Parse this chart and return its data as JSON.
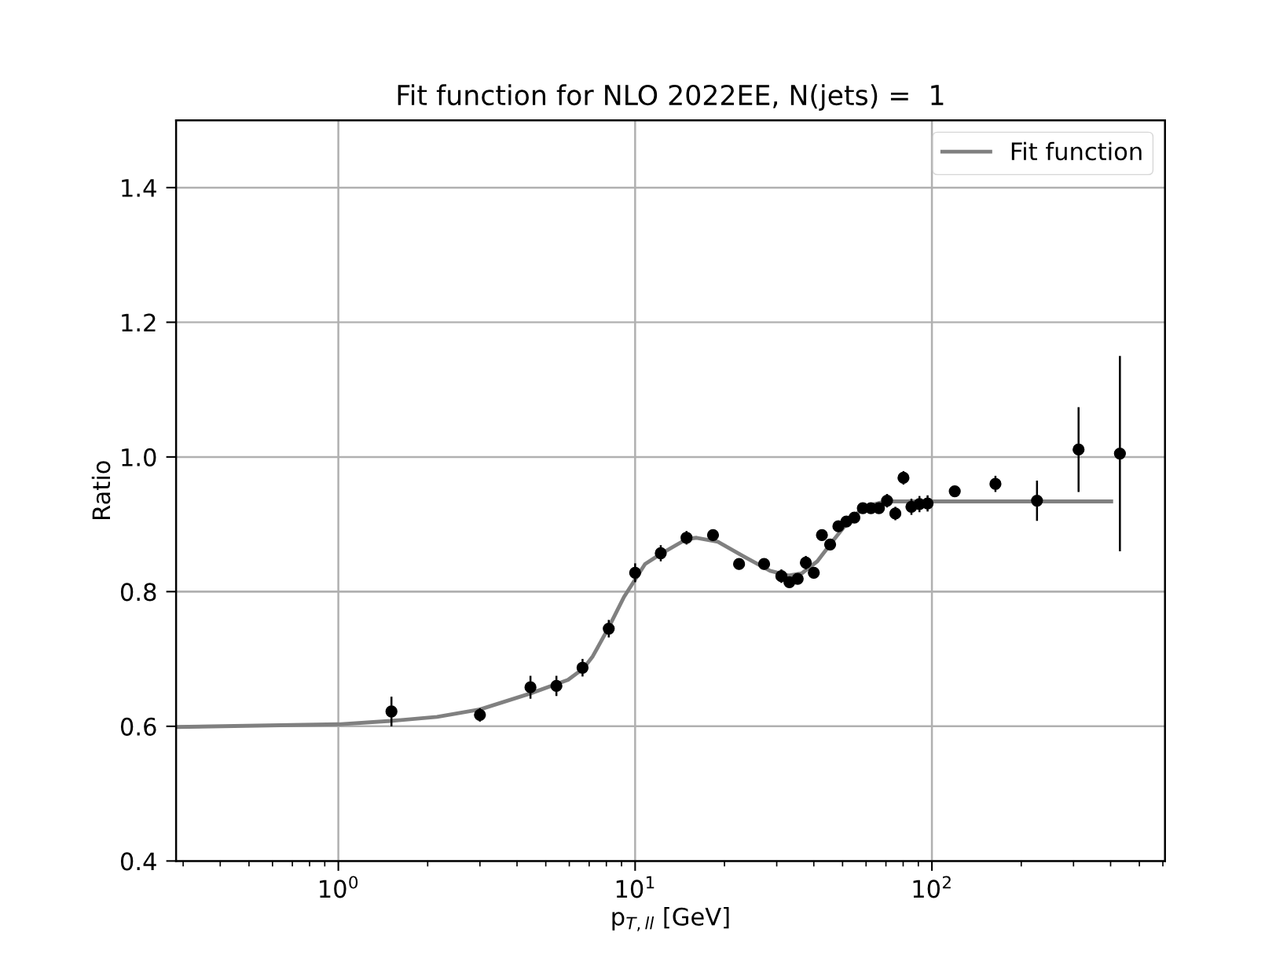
{
  "chart_data": {
    "type": "scatter",
    "title": "Fit function for NLO 2022EE, N(jets) =  1",
    "xlabel": "p$_{T,ll}$ [GeV]",
    "ylabel": "Ratio",
    "log": "x",
    "xlim": [
      0.284,
      610
    ],
    "ylim": [
      0.4,
      1.5
    ],
    "xticks": [
      {
        "value": 1,
        "label": "10$^{0}$"
      },
      {
        "value": 10,
        "label": "10$^{1}$"
      },
      {
        "value": 100,
        "label": "10$^{2}$"
      }
    ],
    "yticks": [
      {
        "value": 0.4,
        "label": "0.4"
      },
      {
        "value": 0.6,
        "label": "0.6"
      },
      {
        "value": 0.8,
        "label": "0.8"
      },
      {
        "value": 1.0,
        "label": "1.0"
      },
      {
        "value": 1.2,
        "label": "1.2"
      },
      {
        "value": 1.4,
        "label": "1.4"
      }
    ],
    "grid": true,
    "legend": "top right",
    "series": [
      {
        "type": "line",
        "name": "Fit function",
        "color": "#808080",
        "line_style": "solid",
        "marker": "none",
        "x": [
          0.284,
          1.0,
          1.5,
          2.15,
          3.0,
          4.45,
          5.94,
          6.7,
          7.2,
          8.13,
          9.17,
          10,
          10.8,
          12.2,
          14.9,
          16.1,
          19.0,
          23.3,
          28.5,
          32.9,
          36.4,
          41.1,
          46.5,
          52.5,
          59.3,
          67,
          74,
          100,
          402
        ],
        "values": [
          0.599,
          0.603,
          0.608,
          0.614,
          0.625,
          0.649,
          0.669,
          0.686,
          0.704,
          0.746,
          0.792,
          0.818,
          0.841,
          0.856,
          0.878,
          0.88,
          0.874,
          0.852,
          0.831,
          0.824,
          0.827,
          0.845,
          0.876,
          0.905,
          0.926,
          0.932,
          0.934,
          0.934,
          0.934
        ]
      },
      {
        "color": "#000000",
        "marker": "circle",
        "x": [
          1.51,
          3.0,
          4.44,
          5.43,
          6.65,
          8.15,
          10.0,
          12.2,
          14.9,
          18.3,
          22.4,
          27.2,
          31.1,
          33.1,
          35.3,
          37.6,
          40.0,
          42.6,
          45.4,
          48.4,
          51.5,
          54.8,
          58.5,
          62.3,
          66.3,
          70.6,
          75.3,
          80.2,
          85.3,
          90.8,
          96.7,
          119.4,
          163.7,
          226,
          312,
          430
        ],
        "values": [
          0.622,
          0.617,
          0.658,
          0.66,
          0.687,
          0.745,
          0.828,
          0.857,
          0.88,
          0.884,
          0.841,
          0.841,
          0.823,
          0.814,
          0.819,
          0.843,
          0.828,
          0.884,
          0.87,
          0.897,
          0.904,
          0.91,
          0.924,
          0.924,
          0.924,
          0.935,
          0.916,
          0.969,
          0.926,
          0.93,
          0.931,
          0.949,
          0.96,
          0.935,
          1.011,
          1.005
        ],
        "errors": [
          0.022,
          0.01,
          0.017,
          0.015,
          0.013,
          0.013,
          0.014,
          0.012,
          0.01,
          0.008,
          0.005,
          0.005,
          0.01,
          0.008,
          0.008,
          0.01,
          0.008,
          0.008,
          0.008,
          0.008,
          0.008,
          0.008,
          0.008,
          0.008,
          0.008,
          0.01,
          0.01,
          0.01,
          0.012,
          0.012,
          0.012,
          0.006,
          0.012,
          0.03,
          0.063,
          0.145
        ]
      }
    ]
  }
}
